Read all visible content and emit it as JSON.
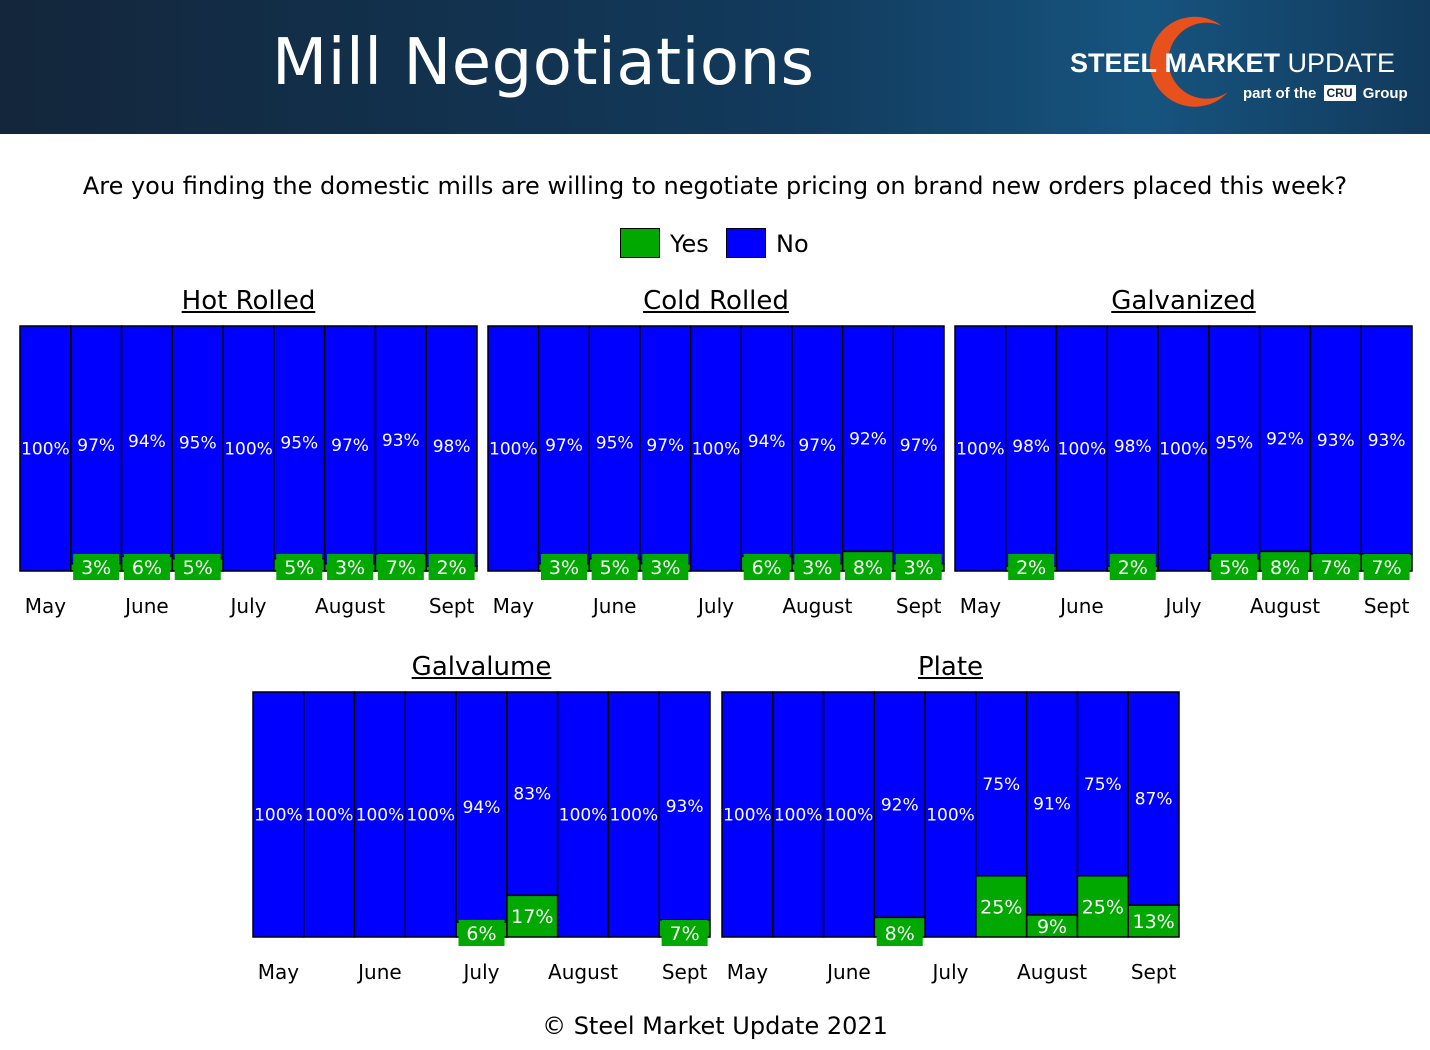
{
  "header": {
    "title": "Mill Negotiations"
  },
  "logo": {
    "name_bold": "STEEL",
    "name_bold2": "MARKET",
    "name_rest": "UPDATE",
    "sub_before": "part of the",
    "sub_badge": "CRU",
    "sub_after": "Group"
  },
  "question": "Are you finding the domestic mills are willing to negotiate pricing on brand new orders placed this week?",
  "legend": {
    "yes_label": "Yes",
    "no_label": "No"
  },
  "colors": {
    "yes": "#00a800",
    "no": "#0000ff"
  },
  "footer": "© Steel Market Update 2021",
  "chart_data": [
    {
      "type": "bar",
      "stacked": true,
      "title": "Hot Rolled",
      "x_labels": [
        "May",
        "June",
        "July",
        "August",
        "Sept"
      ],
      "series": [
        {
          "name": "Yes",
          "values": [
            0,
            3,
            6,
            5,
            0,
            5,
            3,
            7,
            2
          ],
          "labels": [
            "",
            "3%",
            "6%",
            "5%",
            "",
            "5%",
            "3%",
            "7%",
            "2%"
          ]
        },
        {
          "name": "No",
          "values": [
            100,
            97,
            94,
            95,
            100,
            95,
            97,
            93,
            98
          ],
          "labels": [
            "100%",
            "97%",
            "94%",
            "95%",
            "100%",
            "95%",
            "97%",
            "93%",
            "98%"
          ]
        }
      ],
      "ylim": [
        0,
        100
      ]
    },
    {
      "type": "bar",
      "stacked": true,
      "title": "Cold Rolled",
      "x_labels": [
        "May",
        "June",
        "July",
        "August",
        "Sept"
      ],
      "series": [
        {
          "name": "Yes",
          "values": [
            0,
            3,
            5,
            3,
            0,
            6,
            3,
            8,
            3
          ],
          "labels": [
            "",
            "3%",
            "5%",
            "3%",
            "",
            "6%",
            "3%",
            "8%",
            "3%"
          ]
        },
        {
          "name": "No",
          "values": [
            100,
            97,
            95,
            97,
            100,
            94,
            97,
            92,
            97
          ],
          "labels": [
            "100%",
            "97%",
            "95%",
            "97%",
            "100%",
            "94%",
            "97%",
            "92%",
            "97%"
          ]
        }
      ],
      "ylim": [
        0,
        100
      ]
    },
    {
      "type": "bar",
      "stacked": true,
      "title": "Galvanized",
      "x_labels": [
        "May",
        "June",
        "July",
        "August",
        "Sept"
      ],
      "series": [
        {
          "name": "Yes",
          "values": [
            0,
            2,
            0,
            2,
            0,
            5,
            8,
            7,
            7
          ],
          "labels": [
            "",
            "2%",
            "",
            "2%",
            "",
            "5%",
            "8%",
            "7%",
            "7%"
          ]
        },
        {
          "name": "No",
          "values": [
            100,
            98,
            100,
            98,
            100,
            95,
            92,
            93,
            93
          ],
          "labels": [
            "100%",
            "98%",
            "100%",
            "98%",
            "100%",
            "95%",
            "92%",
            "93%",
            "93%"
          ]
        }
      ],
      "ylim": [
        0,
        100
      ]
    },
    {
      "type": "bar",
      "stacked": true,
      "title": "Galvalume",
      "x_labels": [
        "May",
        "June",
        "July",
        "August",
        "Sept"
      ],
      "series": [
        {
          "name": "Yes",
          "values": [
            0,
            0,
            0,
            0,
            6,
            17,
            0,
            0,
            7
          ],
          "labels": [
            "",
            "",
            "",
            "",
            "6%",
            "17%",
            "",
            "",
            "7%"
          ]
        },
        {
          "name": "No",
          "values": [
            100,
            100,
            100,
            100,
            94,
            83,
            100,
            100,
            93
          ],
          "labels": [
            "100%",
            "100%",
            "100%",
            "100%",
            "94%",
            "83%",
            "100%",
            "100%",
            "93%"
          ]
        }
      ],
      "ylim": [
        0,
        100
      ]
    },
    {
      "type": "bar",
      "stacked": true,
      "title": "Plate",
      "x_labels": [
        "May",
        "June",
        "July",
        "August",
        "Sept"
      ],
      "series": [
        {
          "name": "Yes",
          "values": [
            0,
            0,
            0,
            8,
            0,
            25,
            9,
            25,
            13
          ],
          "labels": [
            "",
            "",
            "",
            "8%",
            "",
            "25%",
            "9%",
            "25%",
            "13%"
          ]
        },
        {
          "name": "No",
          "values": [
            100,
            100,
            100,
            92,
            100,
            75,
            91,
            75,
            87
          ],
          "labels": [
            "100%",
            "100%",
            "100%",
            "92%",
            "100%",
            "75%",
            "91%",
            "75%",
            "87%"
          ]
        }
      ],
      "ylim": [
        0,
        100
      ]
    }
  ]
}
